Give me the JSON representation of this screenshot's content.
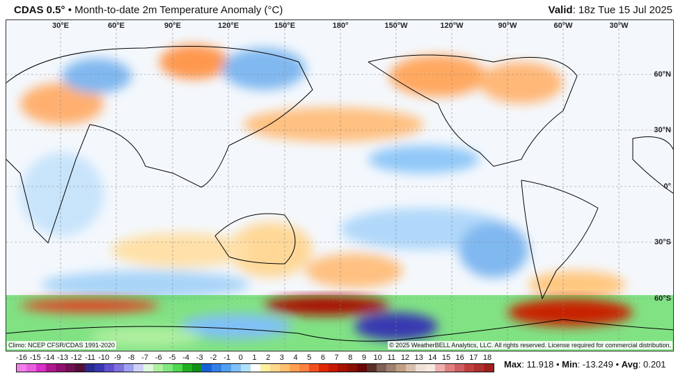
{
  "header": {
    "model": "CDAS 0.5°",
    "separator": "•",
    "title": "Month-to-date 2m Temperature Anomaly (°C)",
    "valid_label": "Valid",
    "valid_value": ": 18z Tue 15 Jul 2025"
  },
  "longitudes": [
    "30°E",
    "60°E",
    "90°E",
    "120°E",
    "150°E",
    "180°",
    "150°W",
    "120°W",
    "90°W",
    "60°W",
    "30°W"
  ],
  "latitudes": [
    "60°N",
    "30°N",
    "0°",
    "30°S",
    "60°S"
  ],
  "climo": "Climo: NCEP CFSR/CDAS 1991-2020",
  "copyright": "© 2025 WeatherBELL Analytics, LLC. All rights reserved. License required for commercial distribution.",
  "colorbar": {
    "ticks": [
      "-16",
      "-15",
      "-14",
      "-13",
      "-12",
      "-11",
      "-10",
      "-9",
      "-8",
      "-7",
      "-6",
      "-5",
      "-4",
      "-3",
      "-2",
      "-1",
      "0",
      "1",
      "2",
      "3",
      "4",
      "5",
      "6",
      "7",
      "8",
      "9",
      "10",
      "11",
      "12",
      "13",
      "14",
      "15",
      "16",
      "17",
      "18"
    ],
    "colors": [
      "#f080e8",
      "#e860e0",
      "#d830c8",
      "#b01890",
      "#901070",
      "#701050",
      "#501038",
      "#2a2a90",
      "#3838b0",
      "#6050d0",
      "#8070e0",
      "#a0a0f0",
      "#d0d0f8",
      "#e0f8e0",
      "#b0f0a0",
      "#80e880",
      "#50d850",
      "#20b020",
      "#10901a",
      "#1860d8",
      "#3080e8",
      "#50a0f0",
      "#80c0f8",
      "#b0e0fc",
      "#ffffff",
      "#fff0a0",
      "#ffd890",
      "#ffc070",
      "#ffa050",
      "#ff8040",
      "#f05020",
      "#e02800",
      "#c81800",
      "#a81000",
      "#881000",
      "#680808",
      "#583028",
      "#806058",
      "#a08070",
      "#c0a080",
      "#d8c0b0",
      "#f0e0d8",
      "#f8e8e0",
      "#f0b0b0",
      "#e08080",
      "#d06060",
      "#c04040",
      "#b03030",
      "#a02020"
    ]
  },
  "stats": {
    "max_label": "Max",
    "max": "11.918",
    "min_label": "Min",
    "min": "-13.249",
    "avg_label": "Avg",
    "avg": "0.201",
    "sep": "•"
  }
}
